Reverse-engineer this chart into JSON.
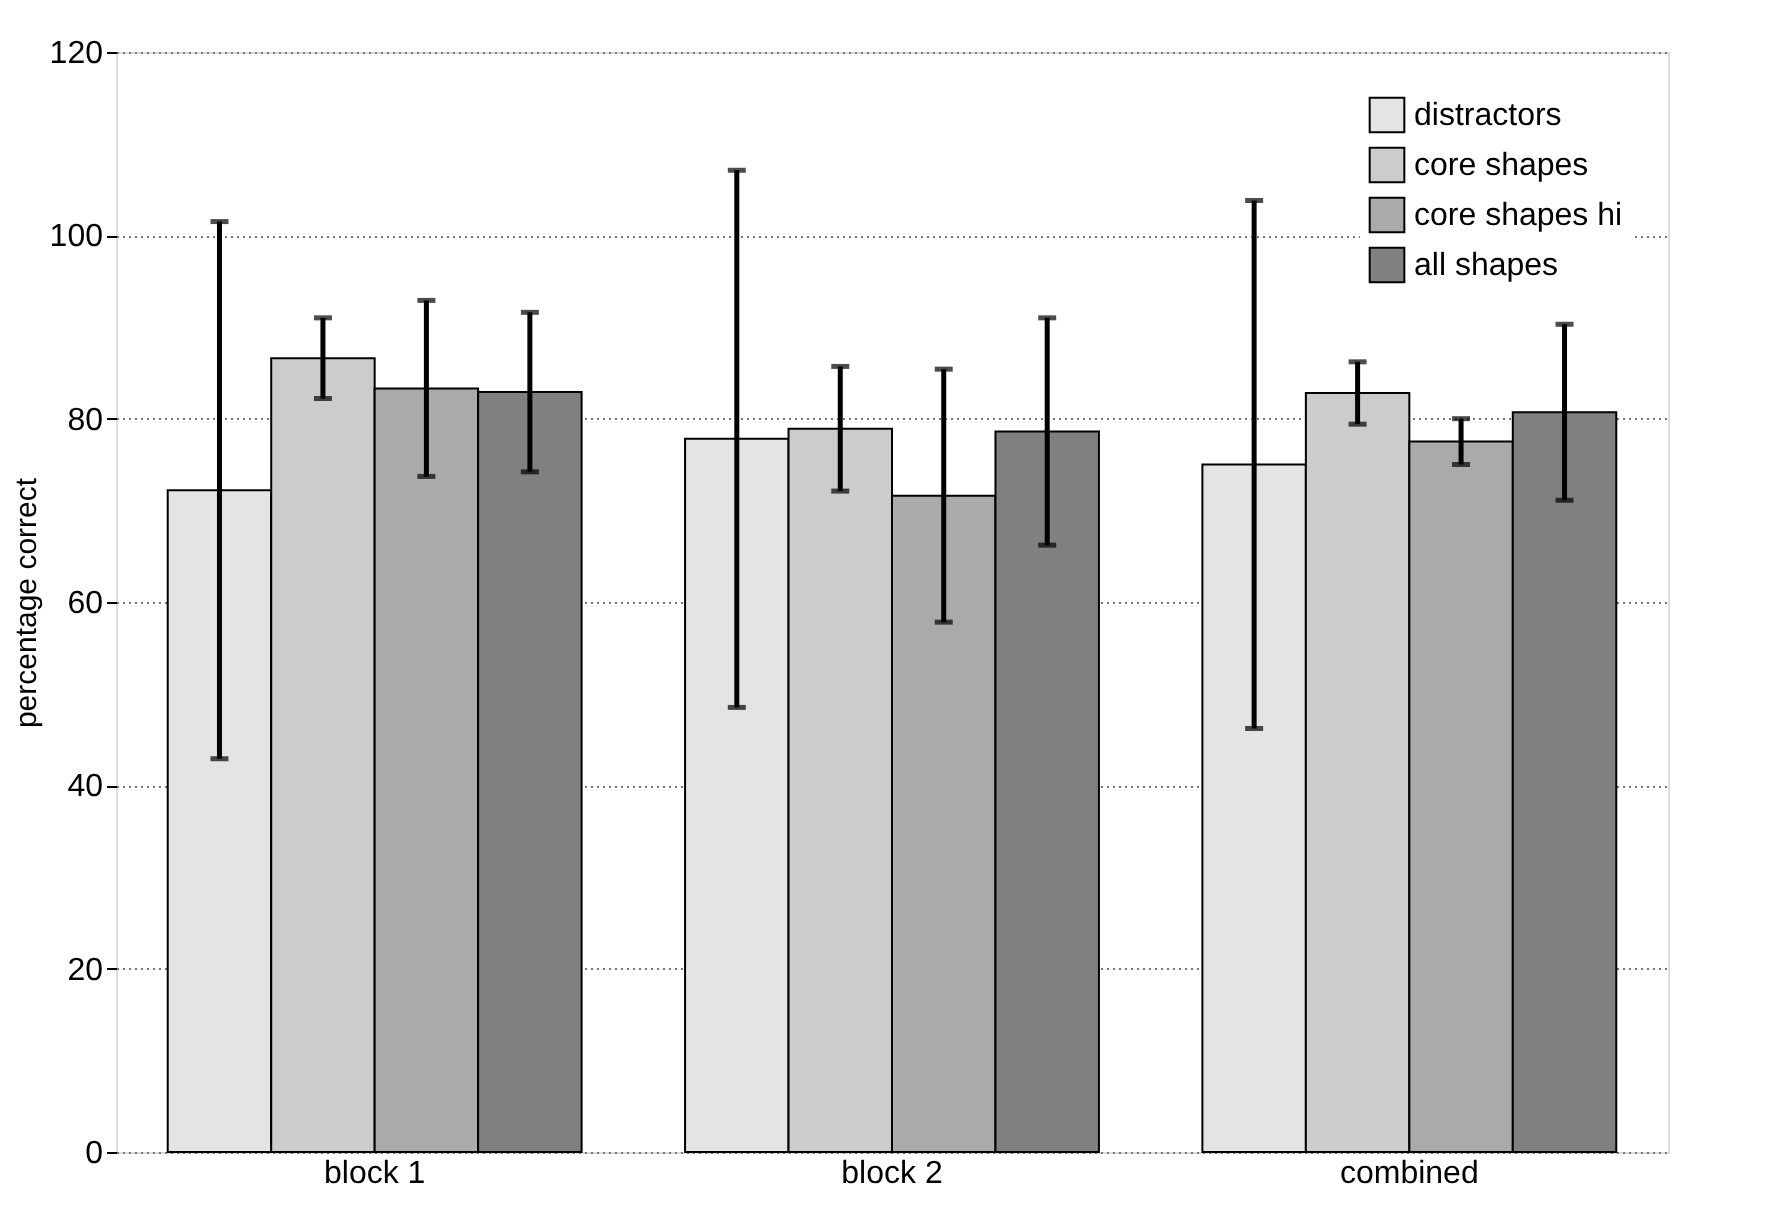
{
  "chart_data": {
    "type": "bar",
    "ylabel": "percentage correct",
    "categories": [
      "block 1",
      "block 2",
      "combined"
    ],
    "series": [
      {
        "name": "distractors",
        "color": "#e4e4e4",
        "values": [
          72.2,
          77.8,
          75.0
        ],
        "errors": [
          29.3,
          29.3,
          28.8
        ]
      },
      {
        "name": "core shapes",
        "color": "#cccccc",
        "values": [
          86.6,
          78.9,
          82.8
        ],
        "errors": [
          4.4,
          6.8,
          3.4
        ]
      },
      {
        "name": "core shapes hi",
        "color": "#aaaaaa",
        "values": [
          83.3,
          71.6,
          77.5
        ],
        "errors": [
          9.6,
          13.8,
          2.5
        ]
      },
      {
        "name": "all shapes",
        "color": "#808080",
        "values": [
          82.9,
          78.6,
          80.7
        ],
        "errors": [
          8.7,
          12.4,
          9.6
        ]
      }
    ],
    "ylim": [
      0,
      120
    ],
    "yticks": [
      0,
      20,
      40,
      60,
      80,
      100,
      120
    ],
    "grid": "y",
    "legend": "top right"
  }
}
